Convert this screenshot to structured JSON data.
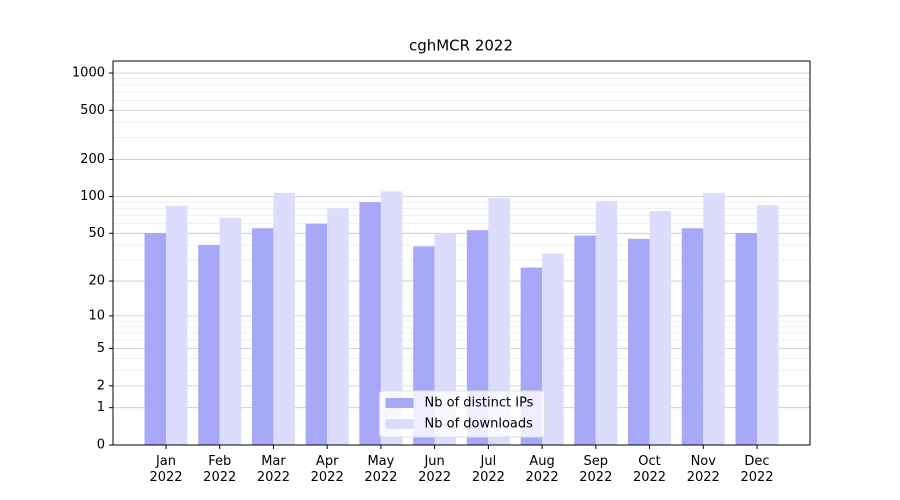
{
  "chart_data": {
    "type": "bar",
    "title": "cghMCR 2022",
    "categories": [
      "Jan 2022",
      "Feb 2022",
      "Mar 2022",
      "Apr 2022",
      "May 2022",
      "Jun 2022",
      "Jul 2022",
      "Aug 2022",
      "Sep 2022",
      "Oct 2022",
      "Nov 2022",
      "Dec 2022"
    ],
    "series": [
      {
        "name": "Nb of distinct IPs",
        "color": "#a8a8f8",
        "values": [
          50,
          40,
          55,
          60,
          90,
          39,
          53,
          26,
          48,
          45,
          55,
          50
        ]
      },
      {
        "name": "Nb of downloads",
        "color": "#dcdcfc",
        "values": [
          84,
          67,
          107,
          80,
          110,
          50,
          97,
          34,
          92,
          76,
          107,
          85
        ]
      }
    ],
    "yscale": "log1p",
    "ylim": [
      0,
      1250
    ],
    "yticks": [
      0,
      1,
      2,
      5,
      10,
      20,
      50,
      100,
      200,
      500,
      1000
    ],
    "minor_grid": [
      3,
      4,
      6,
      7,
      8,
      9,
      30,
      40,
      60,
      70,
      80,
      90,
      300,
      400,
      600,
      700,
      800,
      900
    ],
    "grid": true,
    "legend": "lower center"
  }
}
